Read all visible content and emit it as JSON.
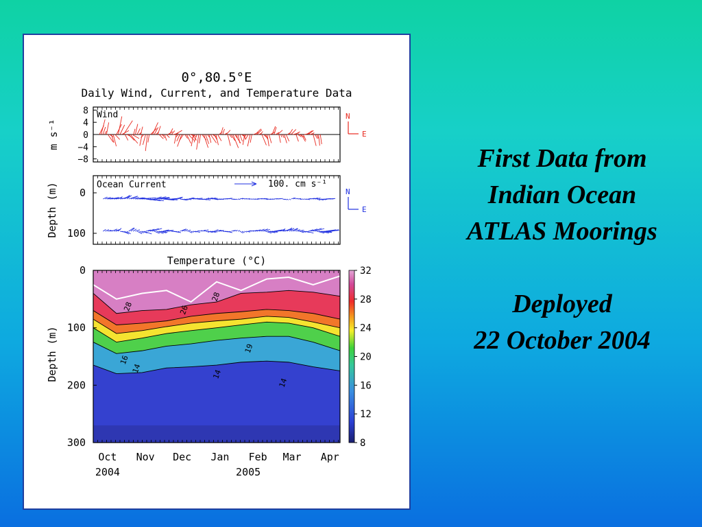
{
  "slide": {
    "title_lines": [
      "First Data from",
      "Indian Ocean",
      "ATLAS Moorings"
    ],
    "subtitle_lines": [
      "Deployed",
      "22 October 2004"
    ]
  },
  "figure": {
    "title": "0°,80.5°E",
    "subtitle": "Daily Wind, Current, and Temperature Data",
    "date_axis": {
      "month_labels": [
        "Oct",
        "Nov",
        "Dec",
        "Jan",
        "Feb",
        "Mar",
        "Apr"
      ],
      "month_dates": [
        "2004-10-01",
        "2004-11-01",
        "2004-12-01",
        "2005-01-01",
        "2005-02-01",
        "2005-03-01",
        "2005-04-01"
      ],
      "year_labels": [
        "2004",
        "2005"
      ],
      "range": [
        "2004-09-26",
        "2005-04-16"
      ]
    },
    "compass": {
      "n": "N",
      "e": "E"
    }
  },
  "chart_data": [
    {
      "type": "line",
      "panel": "wind",
      "label": "Wind",
      "ylabel": "m s⁻¹",
      "yticks": [
        "8",
        "4",
        "0",
        "−4",
        "−8"
      ],
      "ylim": [
        -9,
        9
      ],
      "color": "#e8281e",
      "note": "Daily wind vector stick plot",
      "sticks": [
        {
          "date": "2004-10-01",
          "u": 1.5,
          "v": 5.0
        },
        {
          "date": "2004-10-08",
          "u": 2.0,
          "v": -4.0
        },
        {
          "date": "2004-10-15",
          "u": 3.0,
          "v": 6.0
        },
        {
          "date": "2004-10-22",
          "u": 2.5,
          "v": -3.0
        },
        {
          "date": "2004-10-29",
          "u": 1.0,
          "v": 3.5
        },
        {
          "date": "2004-11-05",
          "u": -1.0,
          "v": -5.5
        },
        {
          "date": "2004-11-12",
          "u": 2.0,
          "v": 4.0
        },
        {
          "date": "2004-11-19",
          "u": 1.5,
          "v": -2.0
        },
        {
          "date": "2004-11-26",
          "u": 2.5,
          "v": 2.0
        },
        {
          "date": "2004-12-03",
          "u": -1.5,
          "v": -4.0
        },
        {
          "date": "2004-12-10",
          "u": 2.0,
          "v": -3.0
        },
        {
          "date": "2004-12-17",
          "u": -1.0,
          "v": -5.0
        },
        {
          "date": "2004-12-24",
          "u": 1.5,
          "v": -4.5
        },
        {
          "date": "2004-12-31",
          "u": 2.0,
          "v": -3.5
        },
        {
          "date": "2005-01-07",
          "u": 1.5,
          "v": 2.5
        },
        {
          "date": "2005-01-14",
          "u": 2.0,
          "v": -4.5
        },
        {
          "date": "2005-01-21",
          "u": 1.0,
          "v": -3.0
        },
        {
          "date": "2005-01-28",
          "u": -1.0,
          "v": -4.0
        },
        {
          "date": "2005-02-04",
          "u": 2.0,
          "v": 2.0
        },
        {
          "date": "2005-02-11",
          "u": 1.5,
          "v": -4.0
        },
        {
          "date": "2005-02-18",
          "u": 2.0,
          "v": 3.0
        },
        {
          "date": "2005-02-25",
          "u": 1.0,
          "v": -3.0
        },
        {
          "date": "2005-03-04",
          "u": 2.0,
          "v": 2.0
        },
        {
          "date": "2005-03-11",
          "u": 1.5,
          "v": -2.5
        },
        {
          "date": "2005-03-18",
          "u": 2.0,
          "v": 1.5
        },
        {
          "date": "2005-03-25",
          "u": 1.0,
          "v": -4.0
        }
      ]
    },
    {
      "type": "line",
      "panel": "ocean_current",
      "label": "Ocean Current",
      "scale_label": "100. cm s⁻¹",
      "ylabel": "Depth (m)",
      "yticks": [
        "0",
        "100"
      ],
      "depths": [
        10,
        120
      ],
      "color": "#1f2fe0",
      "note": "Daily current vector stick plots at two depths",
      "series": [
        {
          "name": "10 m",
          "sticks": [
            {
              "date": "2004-10-04",
              "u": 30,
              "v": 10
            },
            {
              "date": "2004-10-11",
              "u": 40,
              "v": 15
            },
            {
              "date": "2004-10-18",
              "u": 50,
              "v": 20
            },
            {
              "date": "2004-10-25",
              "u": 60,
              "v": 15
            },
            {
              "date": "2004-11-01",
              "u": 70,
              "v": 10
            },
            {
              "date": "2004-11-08",
              "u": 60,
              "v": -10
            },
            {
              "date": "2004-11-15",
              "u": 55,
              "v": 12
            },
            {
              "date": "2004-11-22",
              "u": 65,
              "v": -8
            },
            {
              "date": "2004-11-29",
              "u": 50,
              "v": 10
            },
            {
              "date": "2004-12-06",
              "u": 40,
              "v": -6
            },
            {
              "date": "2004-12-13",
              "u": 45,
              "v": 8
            },
            {
              "date": "2004-12-20",
              "u": 35,
              "v": -5
            },
            {
              "date": "2004-12-27",
              "u": 30,
              "v": 6
            },
            {
              "date": "2005-01-03",
              "u": 25,
              "v": -4
            },
            {
              "date": "2005-01-10",
              "u": 30,
              "v": 5
            },
            {
              "date": "2005-01-17",
              "u": 20,
              "v": -3
            },
            {
              "date": "2005-01-24",
              "u": 25,
              "v": 4
            },
            {
              "date": "2005-01-31",
              "u": 20,
              "v": -2
            },
            {
              "date": "2005-02-07",
              "u": 22,
              "v": 3
            },
            {
              "date": "2005-02-14",
              "u": 18,
              "v": -3
            },
            {
              "date": "2005-02-21",
              "u": 20,
              "v": 4
            },
            {
              "date": "2005-02-28",
              "u": 15,
              "v": -5
            },
            {
              "date": "2005-03-07",
              "u": 25,
              "v": 6
            },
            {
              "date": "2005-03-14",
              "u": 20,
              "v": -4
            },
            {
              "date": "2005-03-21",
              "u": 30,
              "v": 5
            },
            {
              "date": "2005-03-28",
              "u": 25,
              "v": -6
            },
            {
              "date": "2005-04-04",
              "u": 30,
              "v": 4
            }
          ]
        },
        {
          "name": "120 m",
          "sticks": [
            {
              "date": "2004-10-04",
              "u": 20,
              "v": 10
            },
            {
              "date": "2004-10-11",
              "u": 30,
              "v": 20
            },
            {
              "date": "2004-10-18",
              "u": 40,
              "v": -15
            },
            {
              "date": "2004-10-25",
              "u": 35,
              "v": 18
            },
            {
              "date": "2004-11-01",
              "u": 45,
              "v": -20
            },
            {
              "date": "2004-11-08",
              "u": 50,
              "v": 15
            },
            {
              "date": "2004-11-15",
              "u": 40,
              "v": -12
            },
            {
              "date": "2004-11-22",
              "u": 35,
              "v": 10
            },
            {
              "date": "2004-11-29",
              "u": 30,
              "v": -8
            },
            {
              "date": "2004-12-06",
              "u": 35,
              "v": 12
            },
            {
              "date": "2004-12-13",
              "u": 30,
              "v": -10
            },
            {
              "date": "2004-12-20",
              "u": 25,
              "v": 8
            },
            {
              "date": "2004-12-27",
              "u": 30,
              "v": -6
            },
            {
              "date": "2005-01-03",
              "u": 25,
              "v": 10
            },
            {
              "date": "2005-01-10",
              "u": 30,
              "v": -8
            },
            {
              "date": "2005-01-17",
              "u": 20,
              "v": 6
            },
            {
              "date": "2005-01-24",
              "u": 25,
              "v": -10
            },
            {
              "date": "2005-01-31",
              "u": 30,
              "v": 8
            },
            {
              "date": "2005-02-07",
              "u": 35,
              "v": 12
            },
            {
              "date": "2005-02-14",
              "u": 40,
              "v": -10
            },
            {
              "date": "2005-02-21",
              "u": 45,
              "v": 15
            },
            {
              "date": "2005-02-28",
              "u": 50,
              "v": 18
            },
            {
              "date": "2005-03-07",
              "u": 45,
              "v": 15
            },
            {
              "date": "2005-03-14",
              "u": 40,
              "v": -12
            },
            {
              "date": "2005-03-21",
              "u": 50,
              "v": 15
            },
            {
              "date": "2005-03-28",
              "u": 55,
              "v": -10
            },
            {
              "date": "2005-04-04",
              "u": 60,
              "v": 12
            }
          ]
        }
      ]
    },
    {
      "type": "heatmap",
      "panel": "temperature",
      "title": "Temperature (°C)",
      "ylabel": "Depth (m)",
      "yticks": [
        "0",
        "100",
        "200",
        "300"
      ],
      "ylim": [
        0,
        300
      ],
      "colorbar": {
        "ticks": [
          "32",
          "28",
          "24",
          "20",
          "16",
          "12",
          "8"
        ],
        "range": [
          8,
          32
        ]
      },
      "contour_labels": [
        "28",
        "26",
        "28",
        "16",
        "14",
        "14",
        "19",
        "14"
      ],
      "isotherm_depths": {
        "dates": [
          "2004-09-26",
          "2004-10-15",
          "2004-11-05",
          "2004-11-25",
          "2004-12-15",
          "2005-01-05",
          "2005-01-25",
          "2005-02-15",
          "2005-03-05",
          "2005-03-25",
          "2005-04-16"
        ],
        "28": [
          40,
          75,
          70,
          68,
          60,
          55,
          40,
          38,
          35,
          38,
          45
        ],
        "26": [
          70,
          95,
          92,
          88,
          80,
          75,
          72,
          68,
          70,
          75,
          85
        ],
        "24": [
          85,
          110,
          105,
          98,
          92,
          88,
          85,
          80,
          82,
          90,
          100
        ],
        "20": [
          100,
          125,
          118,
          110,
          105,
          100,
          95,
          90,
          92,
          100,
          115
        ],
        "16": [
          125,
          145,
          140,
          132,
          128,
          122,
          118,
          115,
          115,
          125,
          140
        ],
        "14": [
          165,
          180,
          178,
          170,
          168,
          165,
          160,
          158,
          160,
          168,
          175
        ]
      },
      "mixed_layer_depth": {
        "dates": [
          "2004-09-26",
          "2004-10-15",
          "2004-11-05",
          "2004-11-25",
          "2004-12-15",
          "2005-01-05",
          "2005-01-25",
          "2005-02-15",
          "2005-03-05",
          "2005-03-25",
          "2005-04-16"
        ],
        "depth": [
          25,
          50,
          40,
          35,
          55,
          20,
          35,
          15,
          12,
          25,
          10
        ],
        "color": "#ffffff"
      }
    }
  ]
}
